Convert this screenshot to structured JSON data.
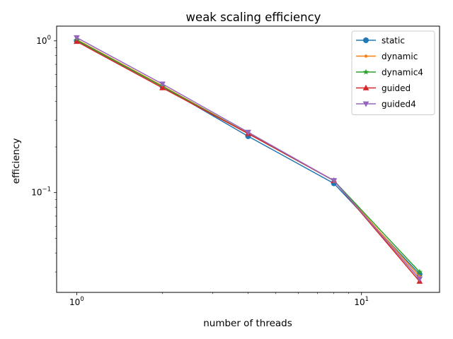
{
  "chart_data": {
    "type": "line",
    "title": "weak scaling efficiency",
    "xlabel": "number of threads",
    "ylabel": "efficiency",
    "xscale": "log",
    "yscale": "log",
    "xlim": [
      0.85,
      18.8
    ],
    "ylim": [
      0.022,
      1.25
    ],
    "x_ticks": [
      {
        "value": 1,
        "label_base": "10",
        "label_exp": "0"
      },
      {
        "value": 10,
        "label_base": "10",
        "label_exp": "1"
      }
    ],
    "y_ticks": [
      {
        "value": 0.1,
        "label_base": "10",
        "label_exp": "−1"
      },
      {
        "value": 1,
        "label_base": "10",
        "label_exp": "0"
      }
    ],
    "grid": false,
    "legend_position": "top-right",
    "x": [
      1,
      2,
      4,
      8,
      16
    ],
    "series": [
      {
        "name": "static",
        "color": "#1f77b4",
        "marker": "circle",
        "values": [
          1.0,
          0.5,
          0.235,
          0.115,
          0.029
        ]
      },
      {
        "name": "dynamic",
        "color": "#ff7f0e",
        "marker": "point",
        "values": [
          1.02,
          0.505,
          0.245,
          0.12,
          0.028
        ]
      },
      {
        "name": "dynamic4",
        "color": "#2ca02c",
        "marker": "star",
        "values": [
          1.01,
          0.5,
          0.245,
          0.12,
          0.03
        ]
      },
      {
        "name": "guided",
        "color": "#d62728",
        "marker": "triangle-up",
        "values": [
          0.99,
          0.49,
          0.245,
          0.12,
          0.026
        ]
      },
      {
        "name": "guided4",
        "color": "#9467bd",
        "marker": "triangle-down",
        "values": [
          1.05,
          0.52,
          0.25,
          0.12,
          0.027
        ]
      }
    ]
  }
}
